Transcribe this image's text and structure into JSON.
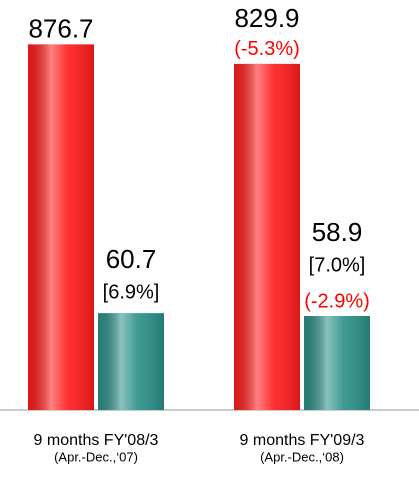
{
  "chart_data": {
    "type": "bar",
    "categories": [
      "9 months FY'08/3",
      "9 months FY'09/3"
    ],
    "category_sublabels": [
      "(Apr.-Dec.,‘07)",
      "(Apr.-Dec.,‘08)"
    ],
    "series": [
      {
        "color": "#ff1a1a",
        "values": [
          876.7,
          829.9
        ],
        "changes": [
          null,
          "(-5.3%)"
        ]
      },
      {
        "color": "#2a8f88",
        "axis": "y2",
        "values": [
          60.7,
          58.9
        ],
        "margins": [
          "[6.9%]",
          "[7.0%]"
        ],
        "changes": [
          null,
          "(-2.9%)"
        ]
      }
    ],
    "ylim": [
      0,
      880
    ],
    "y2lim": [
      0,
      230
    ]
  }
}
